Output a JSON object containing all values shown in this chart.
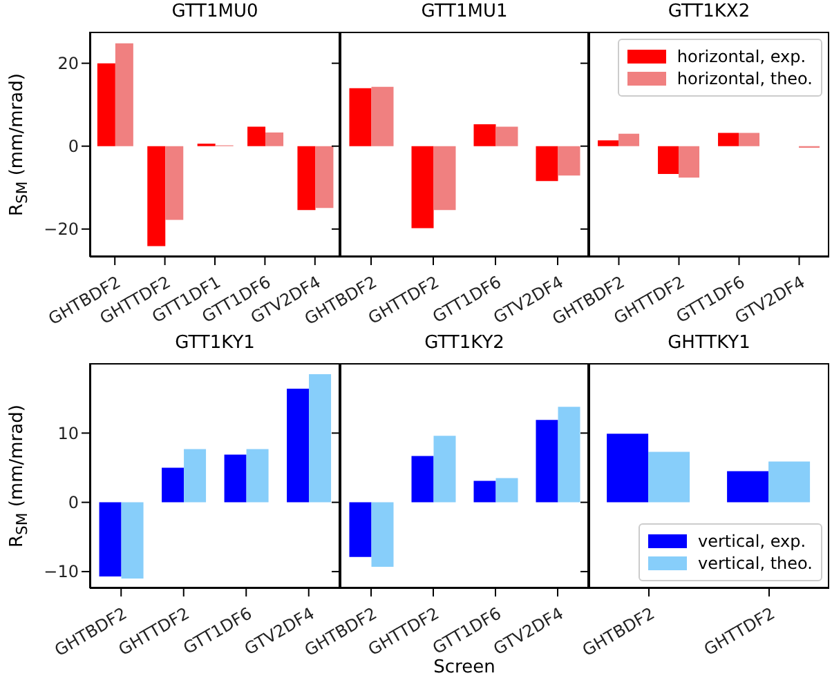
{
  "chart_data": [
    {
      "type": "bar",
      "title": "GTT1MU0",
      "ylabel": "R$_{SM}$ (mm/mrad)",
      "categories": [
        "GHTBDF2",
        "GHTTDF2",
        "GTT1DF1",
        "GTT1DF6",
        "GTV2DF4"
      ],
      "ylim": [
        -26.7,
        27.6
      ],
      "yticks": [
        -20,
        0,
        20
      ],
      "series": [
        {
          "color": "#ff0000",
          "values": [
            20.0,
            -24.1,
            0.6,
            4.7,
            -15.4
          ]
        },
        {
          "color": "#f08080",
          "values": [
            24.8,
            -17.8,
            0.2,
            3.3,
            -14.9
          ]
        }
      ]
    },
    {
      "type": "bar",
      "title": "GTT1MU1",
      "categories": [
        "GHTBDF2",
        "GHTTDF2",
        "GTT1DF6",
        "GTV2DF4"
      ],
      "ylim": [
        -26.7,
        27.6
      ],
      "yticks": [
        -20,
        0,
        20
      ],
      "tick_labels": "x",
      "series": [
        {
          "color": "#ff0000",
          "values": [
            14.0,
            -19.8,
            5.3,
            -8.4
          ]
        },
        {
          "color": "#f08080",
          "values": [
            14.3,
            -15.4,
            4.7,
            -7.1
          ]
        }
      ]
    },
    {
      "type": "bar",
      "title": "GTT1KX2",
      "categories": [
        "GHTBDF2",
        "GHTTDF2",
        "GTT1DF6",
        "GTV2DF4"
      ],
      "ylim": [
        -26.7,
        27.6
      ],
      "yticks": [
        -20,
        0,
        20
      ],
      "tick_labels": "x",
      "legend": "top right",
      "series": [
        {
          "name": "horizontal, exp.",
          "color": "#ff0000",
          "values": [
            1.4,
            -6.7,
            3.2,
            0
          ]
        },
        {
          "name": "horizontal, theo.",
          "color": "#f08080",
          "values": [
            3.0,
            -7.6,
            3.2,
            -0.4
          ]
        }
      ]
    },
    {
      "type": "bar",
      "title": "GTT1KY1",
      "ylabel": "R$_{SM}$ (mm/mrad)",
      "categories": [
        "GHTBDF2",
        "GHTTDF2",
        "GTT1DF6",
        "GTV2DF4"
      ],
      "ylim": [
        -12.4,
        20.1
      ],
      "yticks": [
        -10,
        0,
        10
      ],
      "series": [
        {
          "color": "#0000ff",
          "values": [
            -10.7,
            5.0,
            6.9,
            16.4
          ]
        },
        {
          "color": "#87cefa",
          "values": [
            -11.0,
            7.7,
            7.7,
            18.5
          ]
        }
      ]
    },
    {
      "type": "bar",
      "title": "GTT1KY2",
      "xlabel": "Screen",
      "categories": [
        "GHTBDF2",
        "GHTTDF2",
        "GTT1DF6",
        "GTV2DF4"
      ],
      "ylim": [
        -12.4,
        20.1
      ],
      "yticks": [
        -10,
        0,
        10
      ],
      "tick_labels": "x",
      "series": [
        {
          "color": "#0000ff",
          "values": [
            -7.9,
            6.7,
            3.1,
            11.9
          ]
        },
        {
          "color": "#87cefa",
          "values": [
            -9.3,
            9.6,
            3.5,
            13.8
          ]
        }
      ]
    },
    {
      "type": "bar",
      "title": "GHTTKY1",
      "categories": [
        "GHTBDF2",
        "GHTTDF2"
      ],
      "ylim": [
        -12.4,
        20.1
      ],
      "yticks": [
        -10,
        0,
        10
      ],
      "tick_labels": "x",
      "legend": "bottom right",
      "series": [
        {
          "name": "vertical, exp.",
          "color": "#0000ff",
          "values": [
            9.9,
            4.5
          ]
        },
        {
          "name": "vertical, theo.",
          "color": "#87cefa",
          "values": [
            7.3,
            5.9
          ]
        }
      ]
    }
  ]
}
